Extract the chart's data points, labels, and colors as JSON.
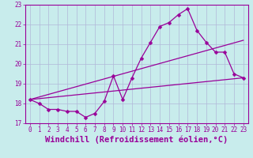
{
  "xlabel": "Windchill (Refroidissement éolien,°C)",
  "ylabel": "",
  "bg_color": "#c8ecec",
  "grid_color": "#b0b8d8",
  "line_color": "#990099",
  "xlim": [
    -0.5,
    23.5
  ],
  "ylim": [
    17,
    23
  ],
  "xticks": [
    0,
    1,
    2,
    3,
    4,
    5,
    6,
    7,
    8,
    9,
    10,
    11,
    12,
    13,
    14,
    15,
    16,
    17,
    18,
    19,
    20,
    21,
    22,
    23
  ],
  "yticks": [
    17,
    18,
    19,
    20,
    21,
    22,
    23
  ],
  "line1_x": [
    0,
    1,
    2,
    3,
    4,
    5,
    6,
    7,
    8,
    9,
    10,
    11,
    12,
    13,
    14,
    15,
    16,
    17,
    18,
    19,
    20,
    21,
    22,
    23
  ],
  "line1_y": [
    18.2,
    18.0,
    17.7,
    17.7,
    17.6,
    17.6,
    17.3,
    17.5,
    18.1,
    19.4,
    18.2,
    19.3,
    20.3,
    21.1,
    21.9,
    22.1,
    22.5,
    22.8,
    21.7,
    21.1,
    20.6,
    20.6,
    19.5,
    19.3
  ],
  "line2_x": [
    0,
    23
  ],
  "line2_y": [
    18.2,
    19.3
  ],
  "line3_x": [
    0,
    23
  ],
  "line3_y": [
    18.2,
    21.2
  ],
  "tick_fontsize": 5.5,
  "xlabel_fontsize": 7.5
}
